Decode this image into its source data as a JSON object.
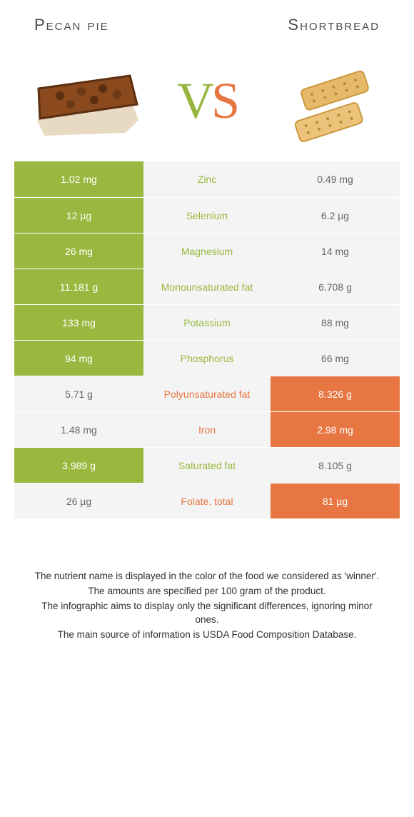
{
  "foods": {
    "left": {
      "name": "Pecan pie",
      "color": "#9ab83f"
    },
    "right": {
      "name": "Shortbread",
      "color": "#e77642"
    }
  },
  "bg_light": "#f4f4f4",
  "mid_text_default": "#555555",
  "rows": [
    {
      "nutrient": "Zinc",
      "left": "1.02 mg",
      "right": "0.49 mg",
      "winner": "left"
    },
    {
      "nutrient": "Selenium",
      "left": "12 µg",
      "right": "6.2 µg",
      "winner": "left"
    },
    {
      "nutrient": "Magnesium",
      "left": "26 mg",
      "right": "14 mg",
      "winner": "left"
    },
    {
      "nutrient": "Monounsaturated fat",
      "left": "11.181 g",
      "right": "6.708 g",
      "winner": "left"
    },
    {
      "nutrient": "Potassium",
      "left": "133 mg",
      "right": "88 mg",
      "winner": "left"
    },
    {
      "nutrient": "Phosphorus",
      "left": "94 mg",
      "right": "66 mg",
      "winner": "left"
    },
    {
      "nutrient": "Polyunsaturated fat",
      "left": "5.71 g",
      "right": "8.326 g",
      "winner": "right"
    },
    {
      "nutrient": "Iron",
      "left": "1.48 mg",
      "right": "2.98 mg",
      "winner": "right"
    },
    {
      "nutrient": "Saturated fat",
      "left": "3.989 g",
      "right": "8.105 g",
      "winner": "left"
    },
    {
      "nutrient": "Folate, total",
      "left": "26 µg",
      "right": "81 µg",
      "winner": "right"
    }
  ],
  "footer": [
    "The nutrient name is displayed in the color of the food we considered as 'winner'.",
    "The amounts are specified per 100 gram of the product.",
    "The infographic aims to display only the significant differences, ignoring minor ones.",
    "The main source of information is USDA Food Composition Database."
  ]
}
